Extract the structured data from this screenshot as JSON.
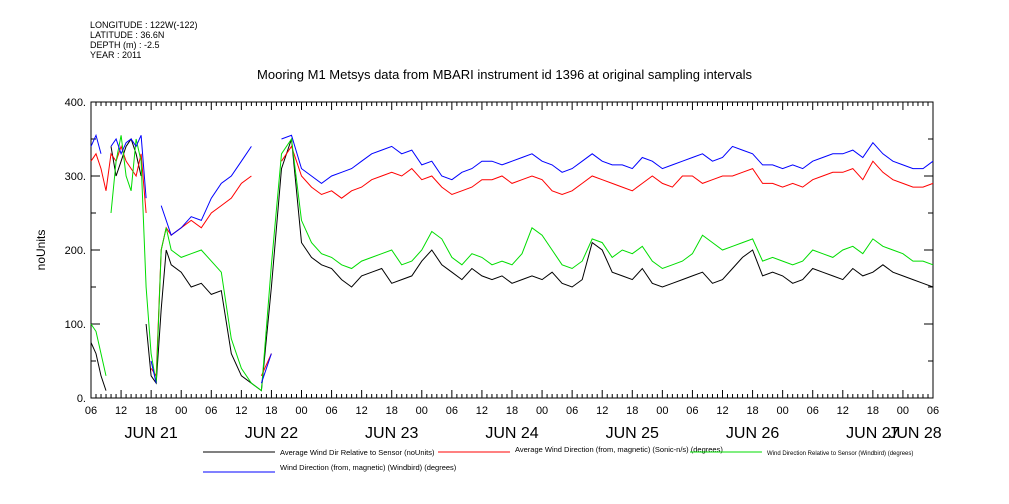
{
  "meta": {
    "longitude": "LONGITUDE : 122W(-122)",
    "latitude": "LATITUDE : 36.6N",
    "depth": "DEPTH (m) : -2.5",
    "year": "YEAR : 2011"
  },
  "chart_data": {
    "type": "line",
    "title": "Mooring M1 Metsys data from MBARI instrument id 1396 at original sampling intervals",
    "ylabel": "noUnits",
    "xlabel": "",
    "ylim": [
      0,
      400
    ],
    "y_ticks": [
      "0.",
      "100.",
      "200.",
      "300.",
      "400."
    ],
    "x_range_hours": [
      0,
      168
    ],
    "hour_tick_labels": [
      "06",
      "12",
      "18",
      "00",
      "06",
      "12",
      "18",
      "00",
      "06",
      "12",
      "18",
      "00",
      "06",
      "12",
      "18",
      "00",
      "06",
      "12",
      "18",
      "00",
      "06",
      "12",
      "18",
      "00",
      "06",
      "12",
      "18",
      "00",
      "06"
    ],
    "day_labels": [
      "JUN 21",
      "JUN 22",
      "JUN 23",
      "JUN 24",
      "JUN 25",
      "JUN 26",
      "JUN 27",
      "JUN 28"
    ],
    "day_label_hours": [
      12,
      36,
      60,
      84,
      108,
      132,
      156,
      174
    ],
    "grid": false,
    "legend_position": "bottom",
    "series": [
      {
        "name": "Average Wind Dir Relative to Sensor (noUnits)",
        "color": "#000000",
        "x": [
          0,
          1,
          2,
          3,
          4,
          5,
          6,
          7,
          8,
          9,
          10,
          11,
          12,
          13,
          14,
          15,
          16,
          18,
          20,
          22,
          24,
          26,
          28,
          30,
          32,
          34,
          36,
          38,
          40,
          42,
          44,
          46,
          48,
          50,
          52,
          54,
          56,
          58,
          60,
          62,
          64,
          66,
          68,
          70,
          72,
          74,
          76,
          78,
          80,
          82,
          84,
          86,
          88,
          90,
          92,
          94,
          96,
          98,
          100,
          102,
          104,
          106,
          108,
          110,
          112,
          114,
          116,
          118,
          120,
          122,
          124,
          126,
          128,
          130,
          132,
          134,
          136,
          138,
          140,
          142,
          144,
          146,
          148,
          150,
          152,
          154,
          156,
          158,
          160,
          162,
          164,
          166,
          168
        ],
        "y": [
          75,
          60,
          30,
          10,
          340,
          300,
          320,
          340,
          350,
          330,
          300,
          100,
          30,
          20,
          120,
          200,
          180,
          170,
          150,
          155,
          140,
          145,
          60,
          30,
          20,
          10,
          150,
          310,
          350,
          210,
          190,
          180,
          175,
          160,
          150,
          165,
          170,
          175,
          155,
          160,
          165,
          185,
          200,
          180,
          170,
          160,
          175,
          165,
          160,
          165,
          155,
          160,
          165,
          160,
          170,
          155,
          150,
          160,
          210,
          200,
          170,
          165,
          160,
          175,
          155,
          150,
          155,
          160,
          165,
          170,
          155,
          160,
          175,
          190,
          200,
          165,
          170,
          165,
          155,
          160,
          175,
          170,
          165,
          160,
          175,
          165,
          170,
          180,
          170,
          165,
          160,
          155,
          150
        ]
      },
      {
        "name": "Average Wind Direction (from, magnetic) (Sonic-n/s) (degrees)",
        "color": "#ff0000",
        "x": [
          0,
          1,
          2,
          3,
          4,
          5,
          6,
          7,
          8,
          9,
          10,
          11,
          12,
          13,
          14,
          15,
          16,
          18,
          20,
          22,
          24,
          26,
          28,
          30,
          32,
          34,
          36,
          38,
          40,
          42,
          44,
          46,
          48,
          50,
          52,
          54,
          56,
          58,
          60,
          62,
          64,
          66,
          68,
          70,
          72,
          74,
          76,
          78,
          80,
          82,
          84,
          86,
          88,
          90,
          92,
          94,
          96,
          98,
          100,
          102,
          104,
          106,
          108,
          110,
          112,
          114,
          116,
          118,
          120,
          122,
          124,
          126,
          128,
          130,
          132,
          134,
          136,
          138,
          140,
          142,
          144,
          146,
          148,
          150,
          152,
          154,
          156,
          158,
          160,
          162,
          164,
          166,
          168
        ],
        "y": [
          320,
          330,
          310,
          280,
          330,
          320,
          340,
          320,
          310,
          300,
          330,
          250,
          40,
          30,
          200,
          230,
          220,
          230,
          240,
          230,
          250,
          260,
          270,
          290,
          300,
          30,
          60,
          320,
          340,
          300,
          285,
          275,
          280,
          270,
          280,
          285,
          295,
          300,
          305,
          300,
          310,
          295,
          300,
          285,
          275,
          280,
          285,
          295,
          295,
          300,
          290,
          295,
          300,
          295,
          280,
          275,
          280,
          290,
          300,
          295,
          290,
          285,
          280,
          290,
          300,
          290,
          285,
          300,
          300,
          290,
          295,
          300,
          300,
          305,
          310,
          290,
          290,
          285,
          290,
          285,
          295,
          300,
          305,
          305,
          310,
          295,
          320,
          305,
          295,
          290,
          285,
          285,
          290
        ]
      },
      {
        "name": "Wind Direction Relative to Sensor (Windbird) (degrees)",
        "color": "#00dd00",
        "x": [
          0,
          1,
          2,
          3,
          4,
          5,
          6,
          7,
          8,
          9,
          10,
          11,
          12,
          13,
          14,
          15,
          16,
          18,
          20,
          22,
          24,
          26,
          28,
          30,
          32,
          34,
          36,
          38,
          40,
          42,
          44,
          46,
          48,
          50,
          52,
          54,
          56,
          58,
          60,
          62,
          64,
          66,
          68,
          70,
          72,
          74,
          76,
          78,
          80,
          82,
          84,
          86,
          88,
          90,
          92,
          94,
          96,
          98,
          100,
          102,
          104,
          106,
          108,
          110,
          112,
          114,
          116,
          118,
          120,
          122,
          124,
          126,
          128,
          130,
          132,
          134,
          136,
          138,
          140,
          142,
          144,
          146,
          148,
          150,
          152,
          154,
          156,
          158,
          160,
          162,
          164,
          166,
          168
        ],
        "y": [
          100,
          90,
          60,
          30,
          250,
          320,
          355,
          300,
          280,
          350,
          320,
          150,
          60,
          20,
          200,
          230,
          200,
          190,
          195,
          200,
          185,
          170,
          80,
          40,
          20,
          10,
          180,
          330,
          350,
          240,
          210,
          195,
          190,
          180,
          175,
          185,
          190,
          195,
          200,
          180,
          185,
          200,
          225,
          215,
          190,
          180,
          195,
          190,
          180,
          185,
          180,
          195,
          230,
          220,
          200,
          180,
          175,
          185,
          215,
          210,
          190,
          200,
          195,
          205,
          185,
          175,
          180,
          185,
          195,
          220,
          210,
          200,
          205,
          210,
          215,
          185,
          190,
          185,
          180,
          185,
          200,
          195,
          190,
          200,
          205,
          195,
          215,
          205,
          200,
          195,
          185,
          185,
          180
        ]
      },
      {
        "name": "Wind Direction (from, magnetic) (Windbird) (degrees)",
        "color": "#0000ff",
        "x": [
          0,
          1,
          2,
          3,
          4,
          5,
          6,
          7,
          8,
          9,
          10,
          11,
          12,
          13,
          14,
          15,
          16,
          18,
          20,
          22,
          24,
          26,
          28,
          30,
          32,
          34,
          36,
          38,
          40,
          42,
          44,
          46,
          48,
          50,
          52,
          54,
          56,
          58,
          60,
          62,
          64,
          66,
          68,
          70,
          72,
          74,
          76,
          78,
          80,
          82,
          84,
          86,
          88,
          90,
          92,
          94,
          96,
          98,
          100,
          102,
          104,
          106,
          108,
          110,
          112,
          114,
          116,
          118,
          120,
          122,
          124,
          126,
          128,
          130,
          132,
          134,
          136,
          138,
          140,
          142,
          144,
          146,
          148,
          150,
          152,
          154,
          156,
          158,
          160,
          162,
          164,
          166,
          168
        ],
        "y": [
          340,
          355,
          330,
          20,
          340,
          350,
          330,
          345,
          350,
          340,
          355,
          270,
          50,
          20,
          260,
          240,
          220,
          230,
          245,
          240,
          270,
          290,
          300,
          320,
          340,
          20,
          60,
          350,
          355,
          310,
          300,
          290,
          300,
          305,
          310,
          320,
          330,
          335,
          340,
          330,
          335,
          315,
          320,
          300,
          295,
          305,
          310,
          320,
          320,
          315,
          320,
          325,
          330,
          320,
          315,
          305,
          310,
          320,
          330,
          320,
          315,
          315,
          310,
          325,
          320,
          310,
          315,
          320,
          325,
          330,
          320,
          325,
          340,
          335,
          330,
          315,
          315,
          310,
          315,
          310,
          320,
          325,
          330,
          330,
          335,
          325,
          345,
          330,
          320,
          315,
          310,
          310,
          320
        ]
      }
    ]
  }
}
